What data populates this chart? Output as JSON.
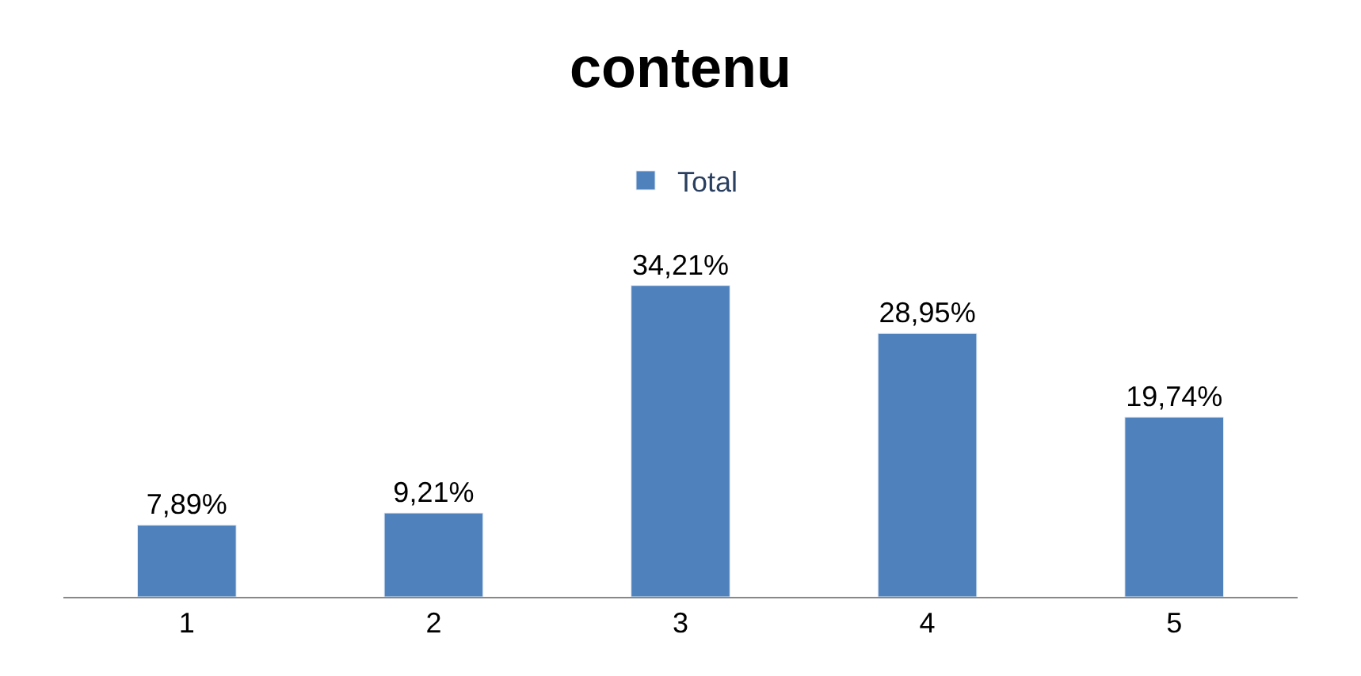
{
  "chart_data": {
    "type": "bar",
    "title": "contenu",
    "categories": [
      "1",
      "2",
      "3",
      "4",
      "5"
    ],
    "series": [
      {
        "name": "Total",
        "color": "#4f81bd",
        "values": [
          7.89,
          9.21,
          34.21,
          28.95,
          19.74
        ],
        "value_labels": [
          "7,89%",
          "9,21%",
          "34,21%",
          "28,95%",
          "19,74%"
        ]
      }
    ],
    "legend": "top"
  }
}
